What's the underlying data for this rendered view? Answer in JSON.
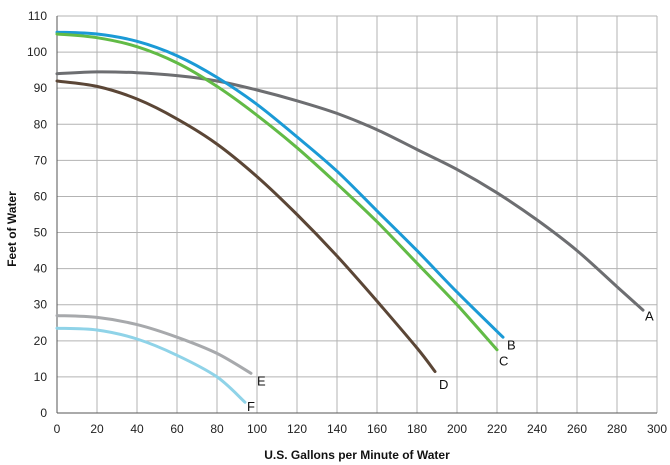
{
  "chart_data": {
    "type": "line",
    "title": "",
    "xlabel": "U.S. Gallons per Minute of Water",
    "ylabel": "Feet of Water",
    "xlim": [
      0,
      300
    ],
    "ylim": [
      0,
      110
    ],
    "x_ticks": [
      0,
      20,
      40,
      60,
      80,
      100,
      120,
      140,
      160,
      180,
      200,
      220,
      240,
      260,
      280,
      300
    ],
    "y_ticks": [
      0,
      10,
      20,
      30,
      40,
      50,
      60,
      70,
      80,
      90,
      100,
      110
    ],
    "grid": true,
    "legend": "none",
    "series": [
      {
        "name": "A",
        "color": "#6d6e71",
        "points": [
          [
            0,
            94
          ],
          [
            20,
            94.5
          ],
          [
            40,
            94.3
          ],
          [
            60,
            93.5
          ],
          [
            80,
            92
          ],
          [
            100,
            89.5
          ],
          [
            120,
            86.5
          ],
          [
            140,
            83
          ],
          [
            160,
            78.5
          ],
          [
            180,
            73
          ],
          [
            200,
            67.5
          ],
          [
            220,
            61
          ],
          [
            240,
            53.5
          ],
          [
            260,
            45
          ],
          [
            280,
            35
          ],
          [
            293,
            28.5
          ]
        ]
      },
      {
        "name": "B",
        "color": "#1b9ad6",
        "points": [
          [
            0,
            105.5
          ],
          [
            20,
            105
          ],
          [
            40,
            103
          ],
          [
            60,
            99
          ],
          [
            80,
            93
          ],
          [
            100,
            85.5
          ],
          [
            120,
            76.5
          ],
          [
            140,
            67
          ],
          [
            160,
            56
          ],
          [
            180,
            45
          ],
          [
            200,
            33.5
          ],
          [
            223,
            21
          ]
        ]
      },
      {
        "name": "C",
        "color": "#62bb46",
        "points": [
          [
            0,
            105
          ],
          [
            20,
            104
          ],
          [
            40,
            101.5
          ],
          [
            60,
            97
          ],
          [
            80,
            90.5
          ],
          [
            100,
            82.5
          ],
          [
            120,
            73.5
          ],
          [
            140,
            63.5
          ],
          [
            160,
            53
          ],
          [
            180,
            41.5
          ],
          [
            200,
            30
          ],
          [
            220,
            17.5
          ]
        ]
      },
      {
        "name": "D",
        "color": "#5b4636",
        "points": [
          [
            0,
            92
          ],
          [
            20,
            90.5
          ],
          [
            40,
            87
          ],
          [
            60,
            81.5
          ],
          [
            80,
            74.5
          ],
          [
            100,
            65.5
          ],
          [
            120,
            55
          ],
          [
            140,
            43.5
          ],
          [
            160,
            31
          ],
          [
            180,
            18
          ],
          [
            189,
            11.5
          ]
        ]
      },
      {
        "name": "E",
        "color": "#a7a9ac",
        "points": [
          [
            0,
            27
          ],
          [
            20,
            26.5
          ],
          [
            40,
            24.5
          ],
          [
            60,
            21
          ],
          [
            80,
            16.5
          ],
          [
            97,
            11
          ]
        ]
      },
      {
        "name": "F",
        "color": "#8fd3e8",
        "points": [
          [
            0,
            23.5
          ],
          [
            20,
            23
          ],
          [
            40,
            20.5
          ],
          [
            60,
            16
          ],
          [
            80,
            10
          ],
          [
            94,
            3
          ]
        ]
      }
    ],
    "curve_labels": [
      {
        "text": "A",
        "x": 294,
        "y": 27
      },
      {
        "text": "B",
        "x": 225,
        "y": 19
      },
      {
        "text": "C",
        "x": 221,
        "y": 14.5
      },
      {
        "text": "D",
        "x": 191,
        "y": 8
      },
      {
        "text": "E",
        "x": 100,
        "y": 9
      },
      {
        "text": "F",
        "x": 95,
        "y": 2
      }
    ]
  }
}
